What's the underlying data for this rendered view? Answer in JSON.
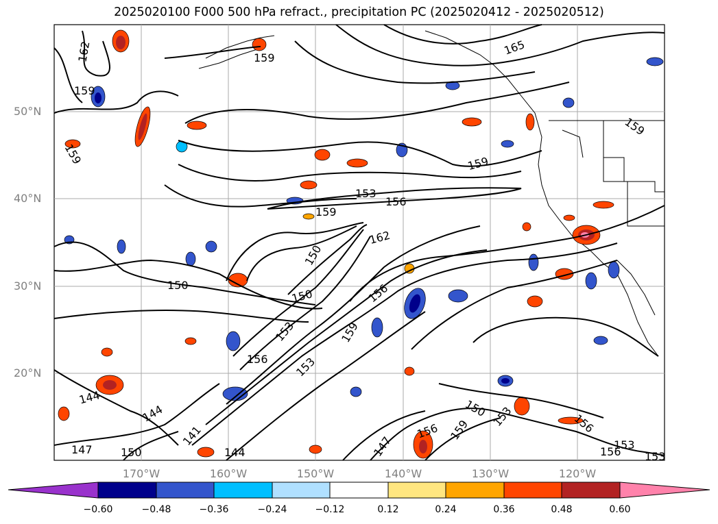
{
  "title": "2025020100 F000 500 hPa refract., precipitation PC (2025020412 - 2025020512)",
  "map": {
    "region": "North-East Pacific",
    "lat_range": [
      10,
      60
    ],
    "lon_range": [
      -180,
      -110
    ],
    "lat_labels": [
      "50°N",
      "40°N",
      "30°N",
      "20°N"
    ],
    "lon_labels": [
      "170°W",
      "160°W",
      "150°W",
      "140°W",
      "130°W",
      "120°W"
    ],
    "contour_labels": [
      "162",
      "159",
      "159",
      "165",
      "159",
      "159",
      "159",
      "153",
      "156",
      "159",
      "162",
      "150",
      "150",
      "153",
      "156",
      "159",
      "150",
      "156",
      "153",
      "144",
      "144",
      "141",
      "150",
      "147",
      "144",
      "147",
      "156",
      "159",
      "150",
      "153",
      "156",
      "153",
      "156",
      "153"
    ]
  },
  "colorbar": {
    "ticks": [
      "−0.60",
      "−0.48",
      "−0.36",
      "−0.24",
      "−0.12",
      "0.12",
      "0.24",
      "0.36",
      "0.48",
      "0.60"
    ],
    "colors": [
      "#9932cc",
      "#00008b",
      "#3355cc",
      "#00bfff",
      "#b0e0ff",
      "#ffffff",
      "#ffe680",
      "#ffa500",
      "#ff4500",
      "#b22222",
      "#ff82ab"
    ]
  }
}
